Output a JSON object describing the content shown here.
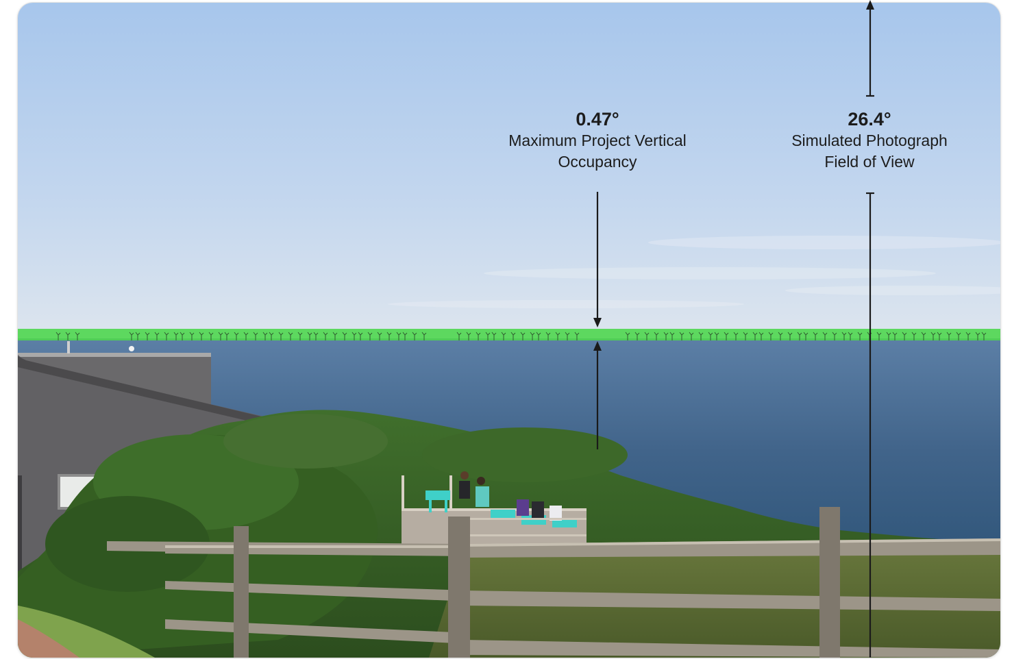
{
  "annotations": {
    "vertical_occupancy": {
      "angle": "0.47°",
      "label_line1": "Maximum Project Vertical",
      "label_line2": "Occupancy"
    },
    "field_of_view": {
      "angle": "26.4°",
      "label_line1": "Simulated Photograph",
      "label_line2": "Field of View"
    }
  },
  "colors": {
    "sky_top": "#a8c7ec",
    "sky_horizon": "#dbe4ee",
    "sea": "#3f6184",
    "project_band": "#4fd64f",
    "vegetation": "#3c6a2a",
    "fence": "#9a9285",
    "building": "#6b6a6c",
    "deck_chairs": "#3fd0c8",
    "arrow": "#1a1a1a"
  },
  "icons": {
    "turbine": "wind-turbine-icon",
    "arrow_up": "arrow-up-icon",
    "arrow_down": "arrow-down-icon"
  }
}
